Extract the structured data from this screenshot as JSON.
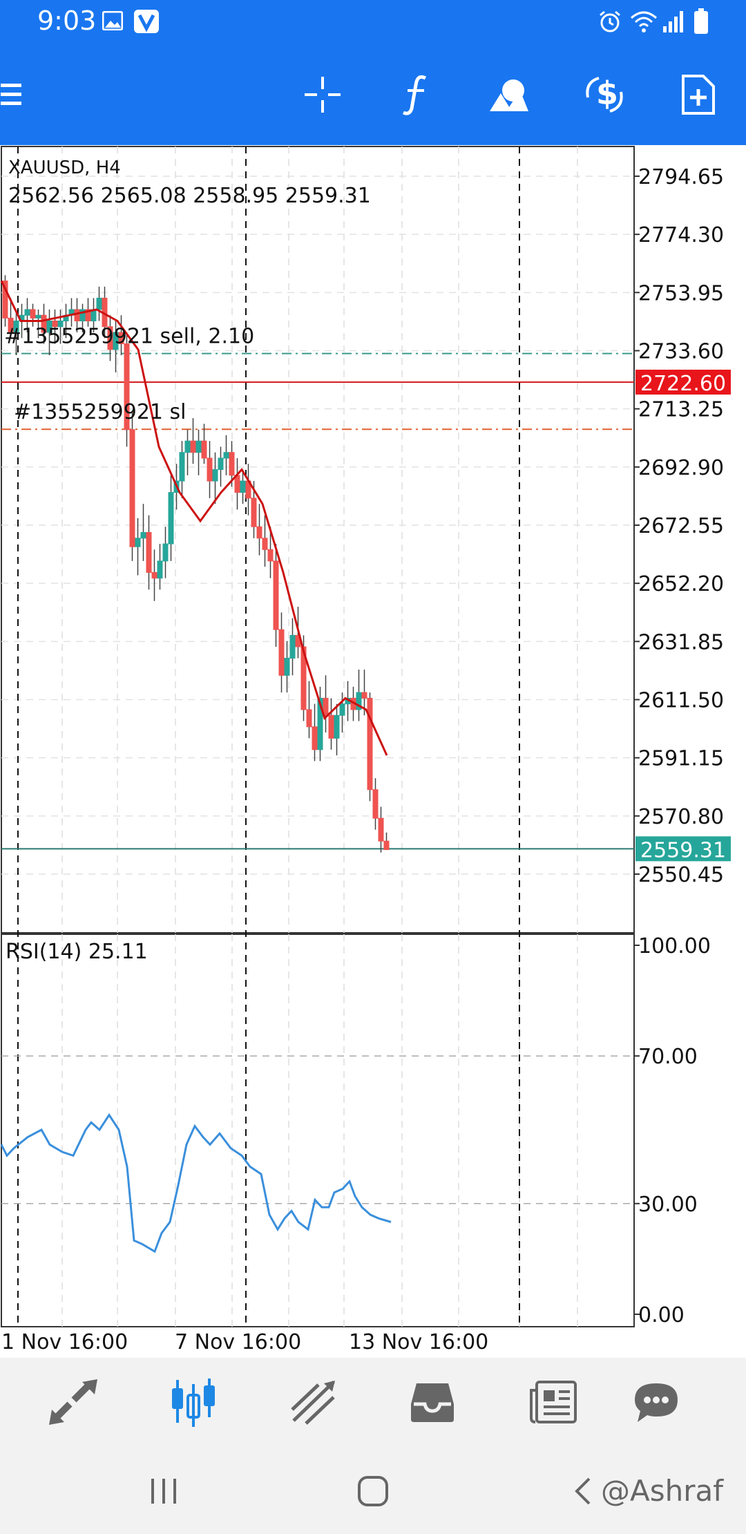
{
  "status_bar": {
    "time": "9:03"
  },
  "toolbar": {
    "buttons": [
      {
        "name": "menu"
      },
      {
        "name": "crosshair"
      },
      {
        "name": "indicators"
      },
      {
        "name": "objects"
      },
      {
        "name": "trade"
      },
      {
        "name": "new-order"
      }
    ]
  },
  "chart": {
    "symbol": "XAUUSD, H4",
    "ohlc": "2562.56 2565.08 2558.95 2559.31",
    "price_axis": [
      "2794.65",
      "2774.30",
      "2753.95",
      "2733.60",
      "2713.25",
      "2692.90",
      "2672.55",
      "2652.20",
      "2631.85",
      "2611.50",
      "2591.15",
      "2570.80",
      "2550.45"
    ],
    "order_line_label": "#1355259921 sell, 2.10",
    "sl_line_label": "#1355259921 sl",
    "bid_price": "2722.60",
    "last_price": "2559.31",
    "time_axis": [
      "1 Nov 16:00",
      "7 Nov 16:00",
      "13 Nov 16:00"
    ],
    "colors": {
      "bull": "#26a69a",
      "bear": "#ef5350",
      "ma": "#cc1111",
      "rsi": "#3a8fdc",
      "bid_bg": "#e8151b",
      "last_bg": "#26a69a"
    }
  },
  "rsi": {
    "label": "RSI(14) 25.11",
    "axis": [
      "100.00",
      "70.00",
      "30.00",
      "0.00"
    ]
  },
  "bottom_nav": {
    "items": [
      {
        "name": "quotes"
      },
      {
        "name": "chart",
        "active": true
      },
      {
        "name": "trade"
      },
      {
        "name": "history"
      },
      {
        "name": "news"
      },
      {
        "name": "messages"
      }
    ]
  },
  "watermark": "@Ashraf"
}
